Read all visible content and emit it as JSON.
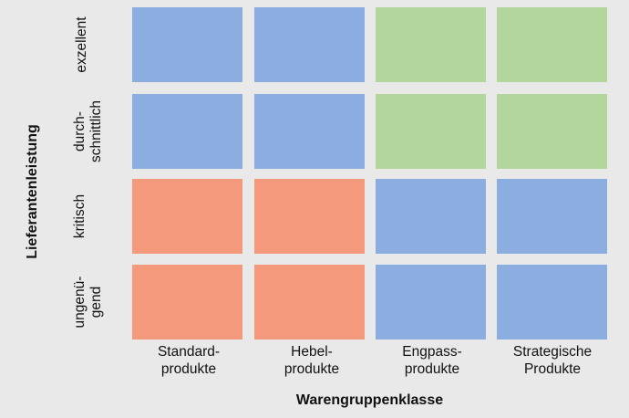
{
  "diagram": {
    "x_axis_title": "Warengruppenklasse",
    "y_axis_title": "Lieferantenleistung",
    "columns": [
      "Standard-\nprodukte",
      "Hebel-\nprodukte",
      "Engpass-\nprodukte",
      "Strategische\nProdukte"
    ],
    "rows": [
      "exzellent",
      "durch-\nschnittlich",
      "kritisch",
      "ungenü-\ngend"
    ],
    "colors": {
      "blue": "#8caddf",
      "green": "#b3d69c",
      "red": "#f4997c"
    },
    "grid": [
      [
        "blue",
        "blue",
        "green",
        "green"
      ],
      [
        "blue",
        "blue",
        "green",
        "green"
      ],
      [
        "red",
        "red",
        "blue",
        "blue"
      ],
      [
        "red",
        "red",
        "blue",
        "blue"
      ]
    ]
  }
}
